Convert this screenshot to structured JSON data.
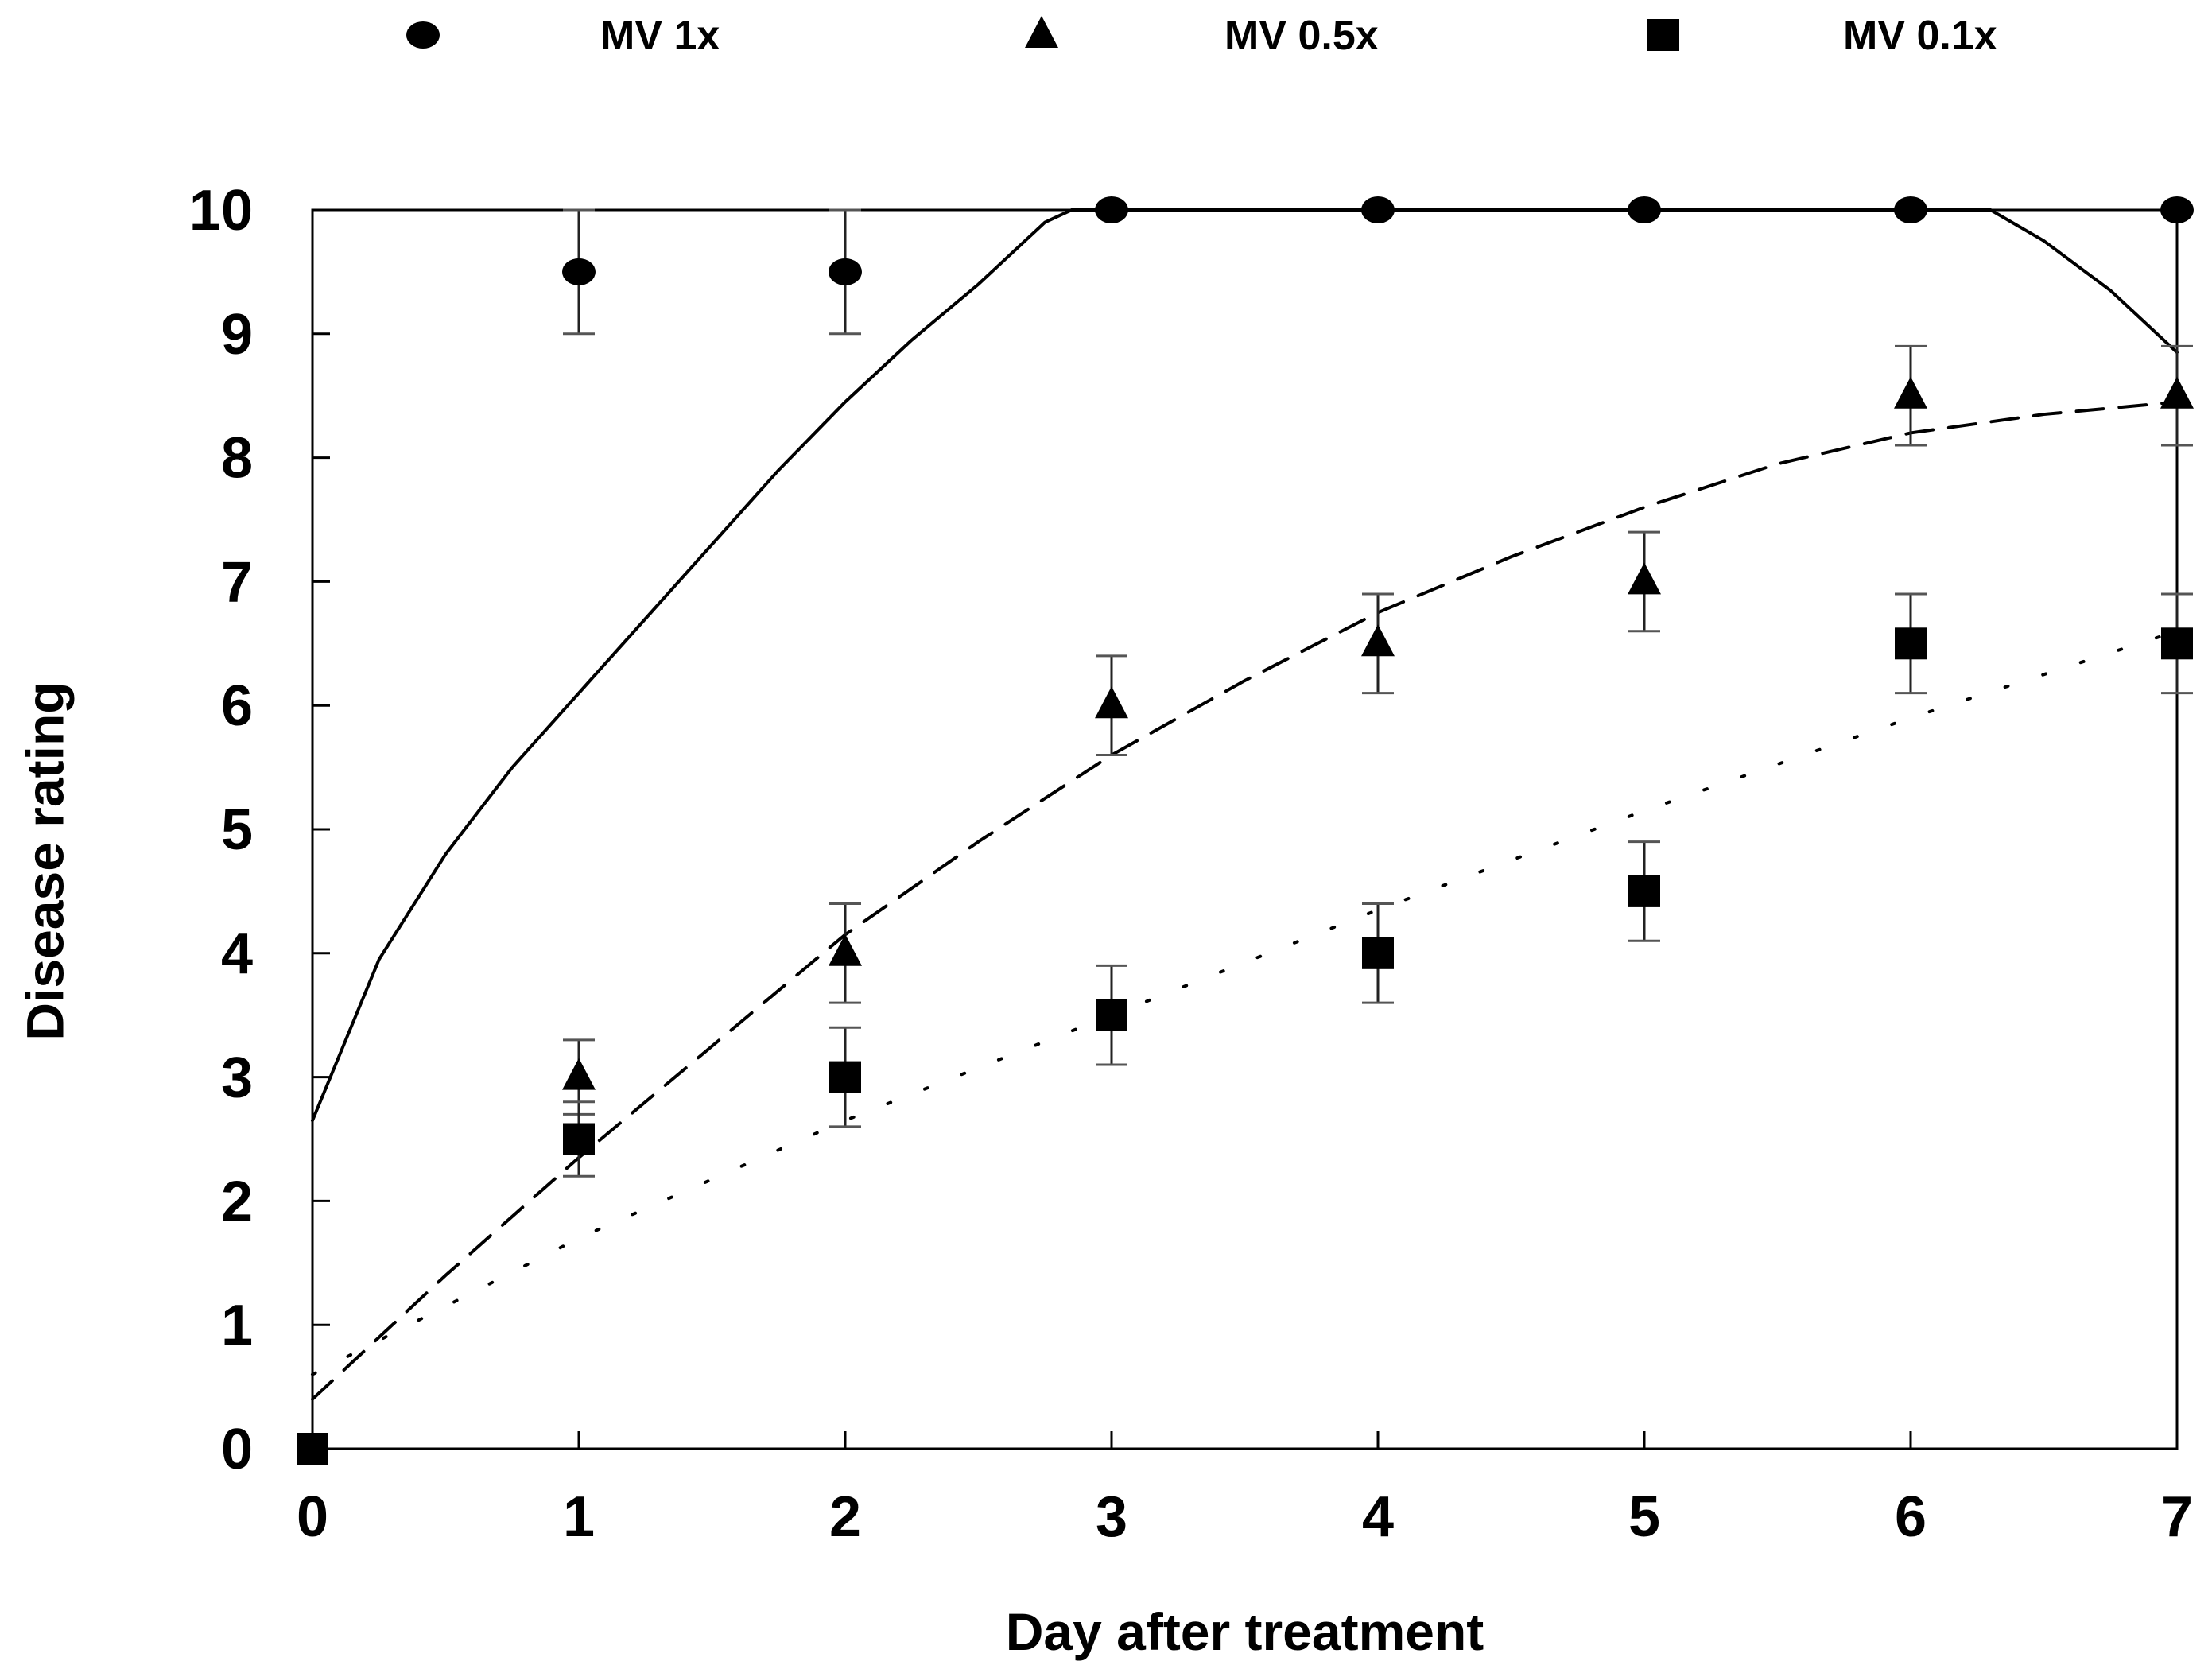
{
  "chart_data": {
    "type": "scatter",
    "title": "",
    "xlabel": "Day after treatment",
    "ylabel": "Disease rating",
    "xlim": [
      0,
      7
    ],
    "ylim": [
      0,
      10
    ],
    "x_ticks": [
      "0",
      "1",
      "2",
      "3",
      "4",
      "5",
      "6",
      "7"
    ],
    "y_ticks": [
      "0",
      "1",
      "2",
      "3",
      "4",
      "5",
      "6",
      "7",
      "8",
      "9",
      "10"
    ],
    "legend_position": "top",
    "series": [
      {
        "name": "MV 1x",
        "marker": "circle",
        "fit_style": "solid",
        "x": [
          1,
          2,
          3,
          4,
          5,
          6,
          7
        ],
        "values": [
          9.5,
          9.5,
          10,
          10,
          10,
          10,
          10
        ],
        "errors": [
          0.5,
          0.5,
          0,
          0,
          0,
          0,
          0
        ],
        "fit_x": [
          0,
          0.25,
          0.5,
          0.75,
          1,
          1.25,
          1.5,
          1.75,
          2,
          2.25,
          2.5,
          2.75,
          2.85,
          3,
          4,
          5,
          6,
          6.3,
          6.5,
          6.75,
          7
        ],
        "fit_y": [
          2.65,
          3.95,
          4.8,
          5.5,
          6.1,
          6.7,
          7.3,
          7.9,
          8.45,
          8.95,
          9.4,
          9.9,
          10,
          10,
          10,
          10,
          10,
          10,
          9.75,
          9.35,
          8.85
        ]
      },
      {
        "name": "MV 0.5x",
        "marker": "triangle",
        "fit_style": "dashed",
        "x": [
          1,
          2,
          3,
          4,
          5,
          6,
          7
        ],
        "values": [
          3,
          4,
          6,
          6.5,
          7,
          8.5,
          8.5
        ],
        "errors": [
          0.3,
          0.4,
          0.4,
          0.4,
          0.4,
          0.4,
          0.4
        ],
        "fit_x": [
          0,
          0.5,
          1,
          1.5,
          2,
          2.5,
          3,
          3.5,
          4,
          4.5,
          5,
          5.5,
          6,
          6.5,
          7
        ],
        "fit_y": [
          0.4,
          1.4,
          2.35,
          3.25,
          4.15,
          4.9,
          5.6,
          6.2,
          6.75,
          7.2,
          7.6,
          7.95,
          8.2,
          8.35,
          8.45
        ]
      },
      {
        "name": "MV 0.1x",
        "marker": "square",
        "fit_style": "dotted",
        "x": [
          0,
          1,
          2,
          3,
          4,
          5,
          6,
          7
        ],
        "values": [
          0,
          2.5,
          3,
          3.5,
          4,
          4.5,
          6.5,
          6.5
        ],
        "errors": [
          0,
          0.3,
          0.4,
          0.4,
          0.4,
          0.4,
          0.4,
          0.4
        ],
        "fit_x": [
          0,
          1,
          2,
          3,
          4,
          5,
          6,
          7
        ],
        "fit_y": [
          0.6,
          1.7,
          2.65,
          3.5,
          4.35,
          5.15,
          5.9,
          6.6
        ]
      }
    ]
  }
}
